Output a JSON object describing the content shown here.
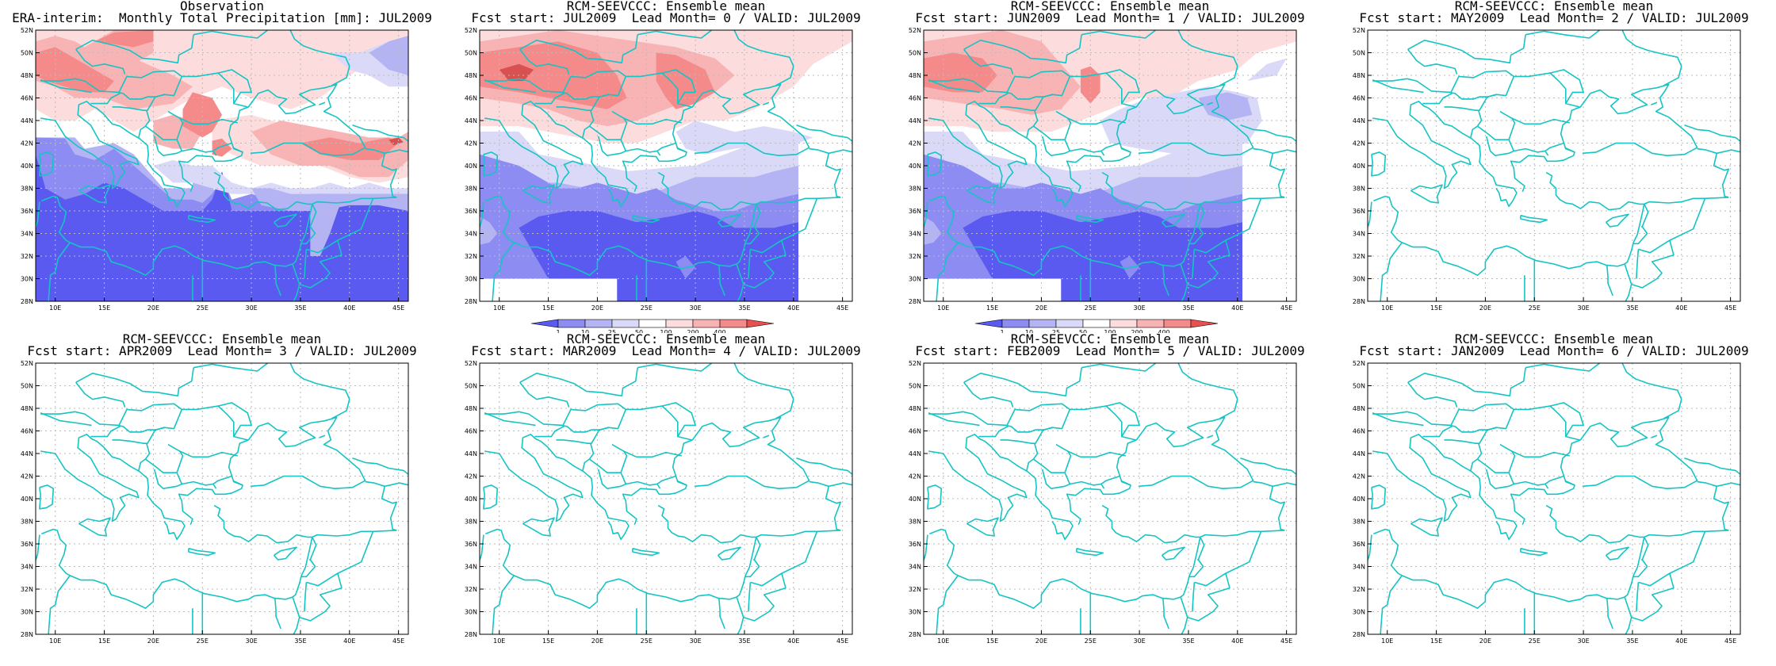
{
  "panels": [
    {
      "id": "obs",
      "title_line1": "Observation",
      "title_line2": "ERA-interim:  Monthly Total Precipitation [mm]: JUL2009",
      "has_data": true,
      "colorbar": false
    },
    {
      "id": "lead0",
      "title_line1": "RCM-SEEVCCC: Ensemble mean",
      "title_line2": "Fcst start: JUL2009  Lead Month= 0 / VALID: JUL2009",
      "has_data": true,
      "colorbar": true
    },
    {
      "id": "lead1",
      "title_line1": "RCM-SEEVCCC: Ensemble mean",
      "title_line2": "Fcst start: JUN2009  Lead Month= 1 / VALID: JUL2009",
      "has_data": true,
      "colorbar": true
    },
    {
      "id": "lead2",
      "title_line1": "RCM-SEEVCCC: Ensemble mean",
      "title_line2": "Fcst start: MAY2009  Lead Month= 2 / VALID: JUL2009",
      "has_data": false,
      "colorbar": false
    },
    {
      "id": "lead3",
      "title_line1": "RCM-SEEVCCC: Ensemble mean",
      "title_line2": "Fcst start: APR2009  Lead Month= 3 / VALID: JUL2009",
      "has_data": false,
      "colorbar": false
    },
    {
      "id": "lead4",
      "title_line1": "RCM-SEEVCCC: Ensemble mean",
      "title_line2": "Fcst start: MAR2009  Lead Month= 4 / VALID: JUL2009",
      "has_data": false,
      "colorbar": false
    },
    {
      "id": "lead5",
      "title_line1": "RCM-SEEVCCC: Ensemble mean",
      "title_line2": "Fcst start: FEB2009  Lead Month= 5 / VALID: JUL2009",
      "has_data": false,
      "colorbar": false
    },
    {
      "id": "lead6",
      "title_line1": "RCM-SEEVCCC: Ensemble mean",
      "title_line2": "Fcst start: JAN2009  Lead Month= 6 / VALID: JUL2009",
      "has_data": false,
      "colorbar": false
    }
  ],
  "map": {
    "lon_min": 8,
    "lon_max": 46,
    "lat_min": 28,
    "lat_max": 52,
    "lon_ticks": [
      "10E",
      "15E",
      "20E",
      "25E",
      "30E",
      "35E",
      "40E",
      "45E"
    ],
    "lat_ticks": [
      "28N",
      "30N",
      "32N",
      "34N",
      "36N",
      "38N",
      "40N",
      "42N",
      "44N",
      "46N",
      "48N",
      "50N",
      "52N"
    ],
    "coast_color": "#16c4c4",
    "grid_color": "#bbbbbb"
  },
  "colorbar": {
    "labels": [
      "1",
      "10",
      "25",
      "50",
      "100",
      "200",
      "400"
    ],
    "colors": [
      "#5a5af0",
      "#8c8cf2",
      "#b4b4f4",
      "#dadaf8",
      "#ffffff",
      "#fcdcdc",
      "#f8b4b4",
      "#f48a8a",
      "#e85050"
    ]
  },
  "colors": {
    "blue_dark": "#5a5af0",
    "blue_mid": "#8c8cf2",
    "blue_light": "#b4b4f4",
    "blue_pale": "#dadaf8",
    "red_pale": "#fcdcdc",
    "red_light": "#f8b4b4",
    "red_mid": "#f48a8a",
    "red_dark": "#d85050"
  }
}
